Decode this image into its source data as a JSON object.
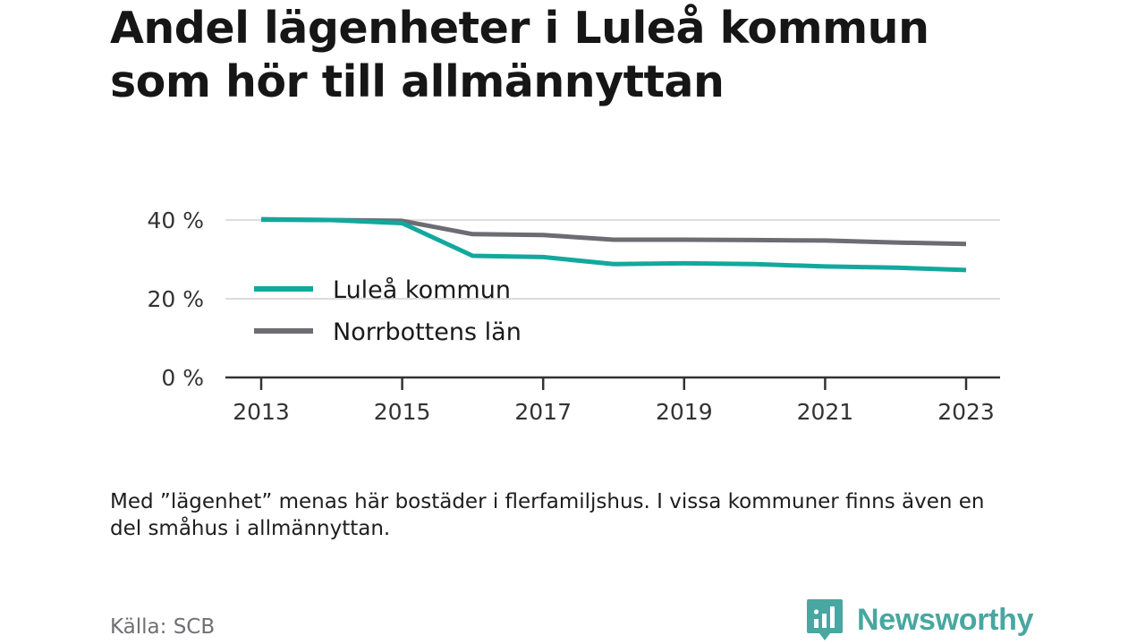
{
  "title": "Andel lägenheter i Luleå kommun som hör till allmännyttan",
  "note": "Med ”lägenhet” menas här bostäder i flerfamiljshus. I vissa kommuner finns även en del småhus i allmännyttan.",
  "source": "Källa: SCB",
  "brand": {
    "name": "Newsworthy",
    "icon": "newsworthy-logo-icon"
  },
  "colors": {
    "lulea": "#13a89e",
    "norrbotten": "#6d6c73",
    "grid": "#dddddd",
    "axis": "#333333"
  },
  "chart_data": {
    "type": "line",
    "x": [
      2013,
      2014,
      2015,
      2016,
      2017,
      2018,
      2019,
      2020,
      2021,
      2022,
      2023
    ],
    "xticks": [
      "2013",
      "2015",
      "2017",
      "2019",
      "2021",
      "2023"
    ],
    "yticks": [
      0,
      20,
      40
    ],
    "ytick_labels": [
      "0 %",
      "20 %",
      "40 %"
    ],
    "ylim": [
      0,
      40
    ],
    "grid": true,
    "legend_position": "inside-left",
    "series": [
      {
        "name": "Luleå kommun",
        "color": "#13a89e",
        "values": [
          40.1,
          40.0,
          39.2,
          30.9,
          30.6,
          28.8,
          29.0,
          28.8,
          28.2,
          27.9,
          27.3
        ]
      },
      {
        "name": "Norrbottens län",
        "color": "#6d6c73",
        "values": [
          40.2,
          40.0,
          39.8,
          36.4,
          36.2,
          35.0,
          35.0,
          34.9,
          34.8,
          34.3,
          33.9
        ]
      }
    ]
  }
}
